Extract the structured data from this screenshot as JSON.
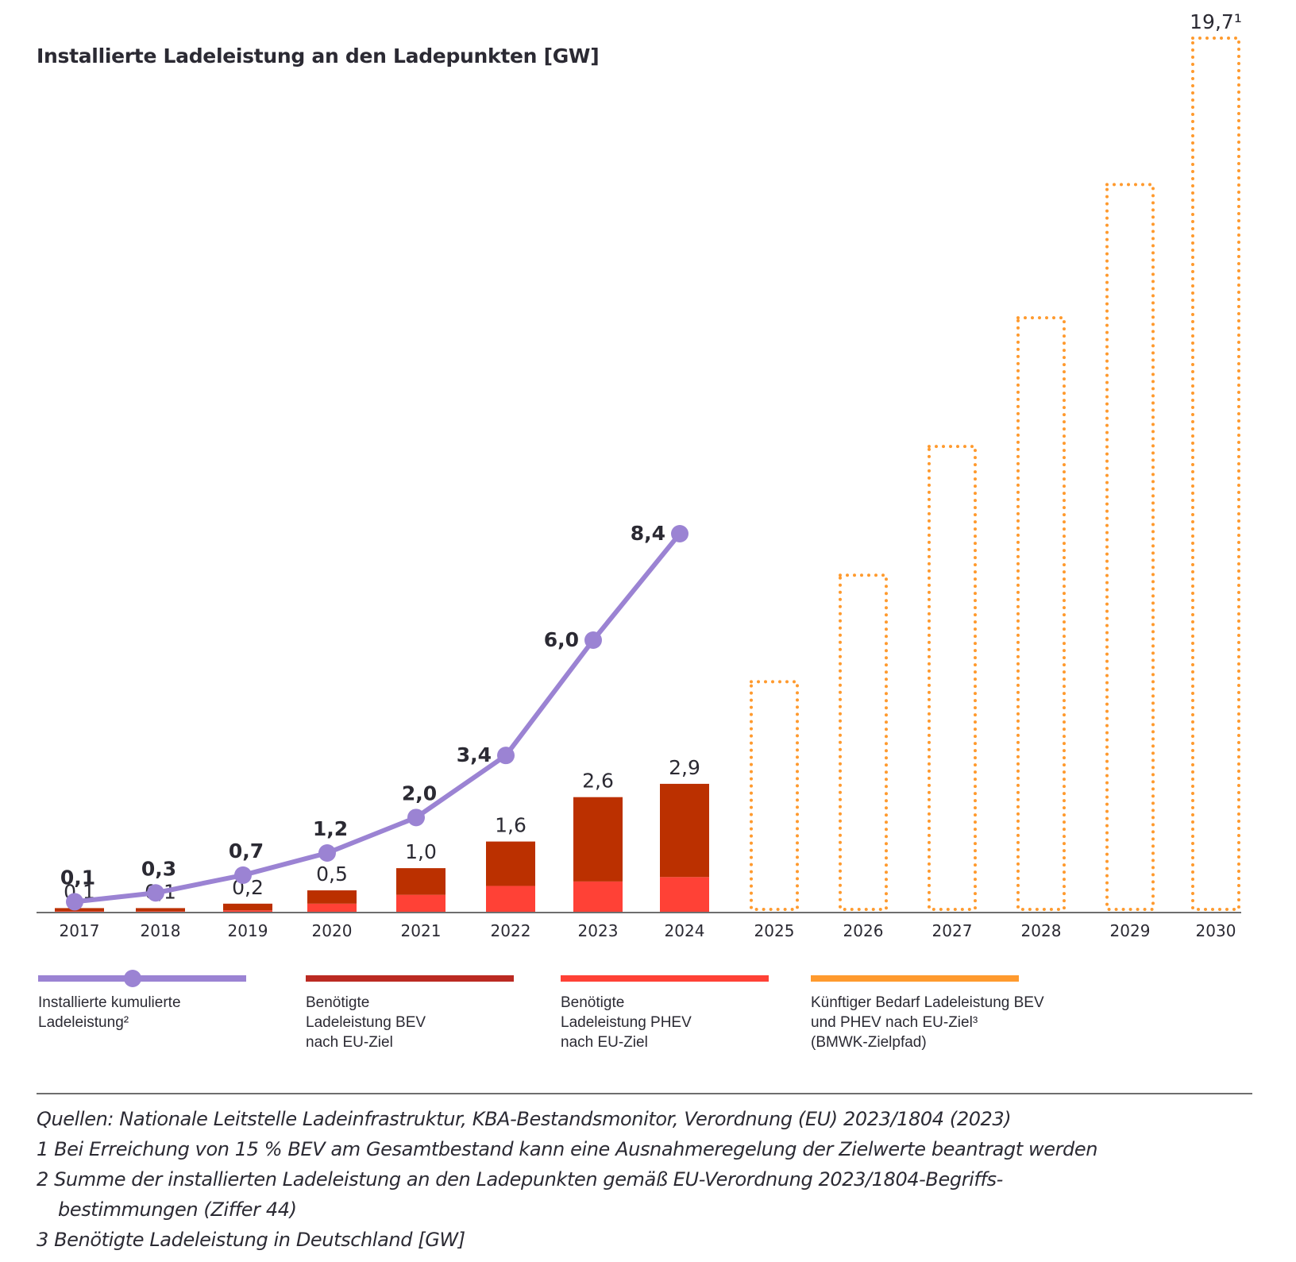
{
  "title": "Installierte Ladeleistung an den Ladepunkten [GW]",
  "chart_data": {
    "type": "bar",
    "title": "Installierte Ladeleistung an den Ladepunkten [GW]",
    "xlabel": "",
    "ylabel": "GW",
    "grid": false,
    "categories": [
      "2017",
      "2018",
      "2019",
      "2020",
      "2021",
      "2022",
      "2023",
      "2024",
      "2025",
      "2026",
      "2027",
      "2028",
      "2029",
      "2030"
    ],
    "bar_totals_labels": [
      "0,1",
      "0,1",
      "0,2",
      "0,5",
      "1,0",
      "1,6",
      "2,6",
      "2,9",
      "",
      "",
      "",
      "",
      "",
      "19,7¹"
    ],
    "series": [
      {
        "name": "Benötigte Ladeleistung BEV nach EU-Ziel",
        "type": "bar-stacked",
        "color": "#bb3000",
        "values": [
          0.07,
          0.07,
          0.15,
          0.3,
          0.6,
          1.0,
          1.9,
          2.1,
          null,
          null,
          null,
          null,
          null,
          null
        ]
      },
      {
        "name": "Benötigte Ladeleistung PHEV nach EU-Ziel",
        "type": "bar-stacked",
        "color": "#ff4136",
        "values": [
          0.03,
          0.03,
          0.05,
          0.2,
          0.4,
          0.6,
          0.7,
          0.8,
          null,
          null,
          null,
          null,
          null,
          null
        ]
      },
      {
        "name": "Künftiger Bedarf Ladeleistung BEV und PHEV nach EU-Ziel³ (BMWK-Zielpfad)",
        "type": "bar-outline-dotted",
        "color": "#ff9a2e",
        "values": [
          null,
          null,
          null,
          null,
          null,
          null,
          null,
          null,
          5.2,
          7.6,
          10.5,
          13.4,
          16.4,
          19.7
        ],
        "values_note": "Only 19,7 (2030) is printed; 2025–2029 are estimated from bar heights."
      },
      {
        "name": "Installierte kumulierte Ladeleistung²",
        "type": "line",
        "color": "#9b83d3",
        "values": [
          0.1,
          0.3,
          0.7,
          1.2,
          2.0,
          3.4,
          6.0,
          8.4,
          null,
          null,
          null,
          null,
          null,
          null
        ],
        "labels": [
          "0,1",
          "0,3",
          "0,7",
          "1,2",
          "2,0",
          "3,4",
          "6,0",
          "8,4"
        ]
      }
    ],
    "ylim": [
      0,
      20
    ],
    "legend_position": "bottom"
  },
  "legend": [
    {
      "lines": [
        "Installierte kumulierte",
        "Ladeleistung²"
      ],
      "color": "#9b83d3",
      "kind": "line-dot"
    },
    {
      "lines": [
        "Benötigte",
        "Ladeleistung BEV",
        "nach EU-Ziel"
      ],
      "color": "#bb2a22",
      "kind": "bar"
    },
    {
      "lines": [
        "Benötigte",
        "Ladeleistung PHEV",
        "nach EU-Ziel"
      ],
      "color": "#ff4136",
      "kind": "bar"
    },
    {
      "lines": [
        "Künftiger Bedarf Ladeleistung BEV",
        "und PHEV nach EU-Ziel³",
        "(BMWK-Zielpfad)"
      ],
      "color": "#ff9a2e",
      "kind": "bar"
    }
  ],
  "notes": {
    "sources": "Quellen: Nationale Leitstelle Ladeinfrastruktur, KBA-Bestandsmonitor, Verordnung (EU) 2023/1804 (2023)",
    "n1": "1 Bei Erreichung von 15 % BEV am Gesamtbestand kann eine Ausnahmeregelung der Zielwerte beantragt werden",
    "n2a": "2 Summe der installierten Ladeleistung an den Ladepunkten gemäß EU-Verordnung 2023/1804-Begriffs-",
    "n2b": "bestimmungen (Ziffer 44)",
    "n3": "3 Benötigte Ladeleistung in Deutschland [GW]"
  }
}
